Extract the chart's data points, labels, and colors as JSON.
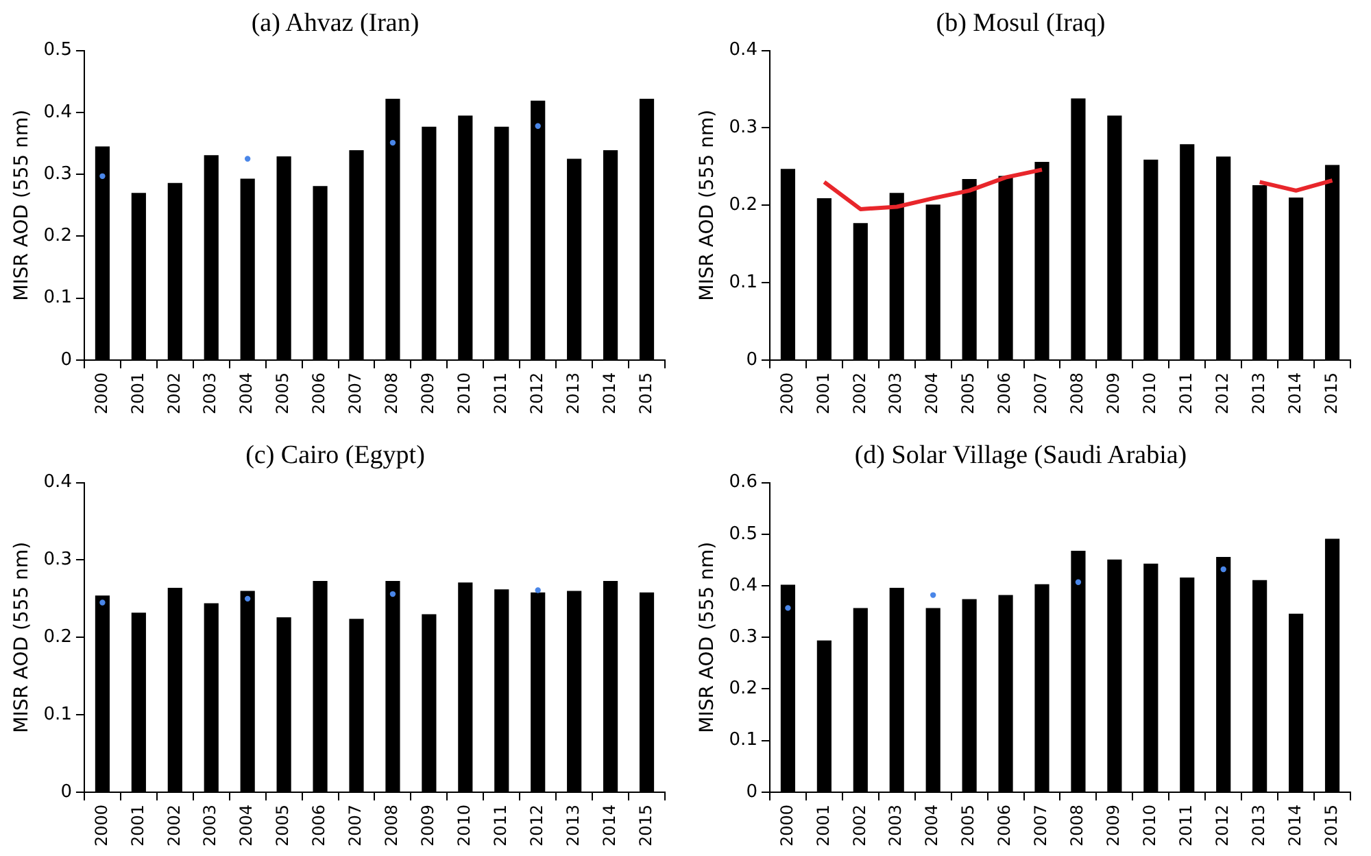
{
  "chart_data": [
    {
      "type": "bar",
      "title": "(a) Ahvaz (Iran)",
      "ylabel": "MISR AOD (555 nm)",
      "categories": [
        "2000",
        "2001",
        "2002",
        "2003",
        "2004",
        "2005",
        "2006",
        "2007",
        "2008",
        "2009",
        "2010",
        "2011",
        "2012",
        "2013",
        "2014",
        "2015"
      ],
      "ylim": [
        0,
        0.5
      ],
      "yticks": [
        0,
        0.1,
        0.2,
        0.3,
        0.4,
        0.5
      ],
      "legend": false,
      "grid": false,
      "series": [
        {
          "color": "#000000",
          "values": [
            0.345,
            0.27,
            0.286,
            0.331,
            0.293,
            0.329,
            0.281,
            0.339,
            0.422,
            0.377,
            0.395,
            0.377,
            0.419,
            0.325,
            0.339,
            0.422
          ]
        },
        {
          "type": "scatter",
          "marker": "circle",
          "color": "#4a86e8",
          "values": [
            0.297,
            null,
            null,
            null,
            0.325,
            null,
            null,
            null,
            0.351,
            null,
            null,
            null,
            0.378,
            null,
            null,
            null
          ]
        }
      ]
    },
    {
      "type": "bar",
      "title": "(b) Mosul (Iraq)",
      "ylabel": "MISR AOD (555 nm)",
      "categories": [
        "2000",
        "2001",
        "2002",
        "2003",
        "2004",
        "2005",
        "2006",
        "2007",
        "2008",
        "2009",
        "2010",
        "2011",
        "2012",
        "2013",
        "2014",
        "2015"
      ],
      "ylim": [
        0,
        0.4
      ],
      "yticks": [
        0,
        0.1,
        0.2,
        0.3,
        0.4
      ],
      "legend": false,
      "grid": false,
      "series": [
        {
          "color": "#000000",
          "values": [
            0.247,
            0.209,
            0.177,
            0.216,
            0.201,
            0.234,
            0.238,
            0.256,
            0.338,
            0.316,
            0.259,
            0.279,
            0.263,
            0.226,
            0.21,
            0.252
          ]
        },
        {
          "type": "line",
          "marker": "none",
          "line_style": "solid",
          "color": "#e8262b",
          "values": [
            null,
            0.23,
            0.195,
            0.198,
            0.209,
            0.219,
            0.236,
            0.246,
            null,
            null,
            null,
            null,
            null,
            0.23,
            0.219,
            0.232
          ]
        }
      ]
    },
    {
      "type": "bar",
      "title": "(c) Cairo (Egypt)",
      "ylabel": "MISR AOD (555 nm)",
      "categories": [
        "2000",
        "2001",
        "2002",
        "2003",
        "2004",
        "2005",
        "2006",
        "2007",
        "2008",
        "2009",
        "2010",
        "2011",
        "2012",
        "2013",
        "2014",
        "2015"
      ],
      "ylim": [
        0,
        0.4
      ],
      "yticks": [
        0,
        0.1,
        0.2,
        0.3,
        0.4
      ],
      "legend": false,
      "grid": false,
      "series": [
        {
          "color": "#000000",
          "values": [
            0.254,
            0.232,
            0.264,
            0.244,
            0.26,
            0.226,
            0.273,
            0.224,
            0.273,
            0.23,
            0.271,
            0.262,
            0.258,
            0.26,
            0.273,
            0.258
          ]
        },
        {
          "type": "scatter",
          "marker": "circle",
          "color": "#4a86e8",
          "values": [
            0.245,
            null,
            null,
            null,
            0.25,
            null,
            null,
            null,
            0.256,
            null,
            null,
            null,
            0.261,
            null,
            null,
            null
          ]
        }
      ]
    },
    {
      "type": "bar",
      "title": "(d) Solar Village (Saudi Arabia)",
      "ylabel": "MISR AOD (555 nm)",
      "categories": [
        "2000",
        "2001",
        "2002",
        "2003",
        "2004",
        "2005",
        "2006",
        "2007",
        "2008",
        "2009",
        "2010",
        "2011",
        "2012",
        "2013",
        "2014",
        "2015"
      ],
      "ylim": [
        0,
        0.6
      ],
      "yticks": [
        0,
        0.1,
        0.2,
        0.3,
        0.4,
        0.5,
        0.6
      ],
      "legend": false,
      "grid": false,
      "series": [
        {
          "color": "#000000",
          "values": [
            0.402,
            0.294,
            0.357,
            0.396,
            0.357,
            0.374,
            0.382,
            0.403,
            0.468,
            0.451,
            0.443,
            0.416,
            0.456,
            0.411,
            0.346,
            0.491
          ]
        },
        {
          "type": "scatter",
          "marker": "circle",
          "color": "#4a86e8",
          "values": [
            0.357,
            null,
            null,
            null,
            0.382,
            null,
            null,
            null,
            0.407,
            null,
            null,
            null,
            0.432,
            null,
            null,
            null
          ]
        }
      ]
    }
  ]
}
